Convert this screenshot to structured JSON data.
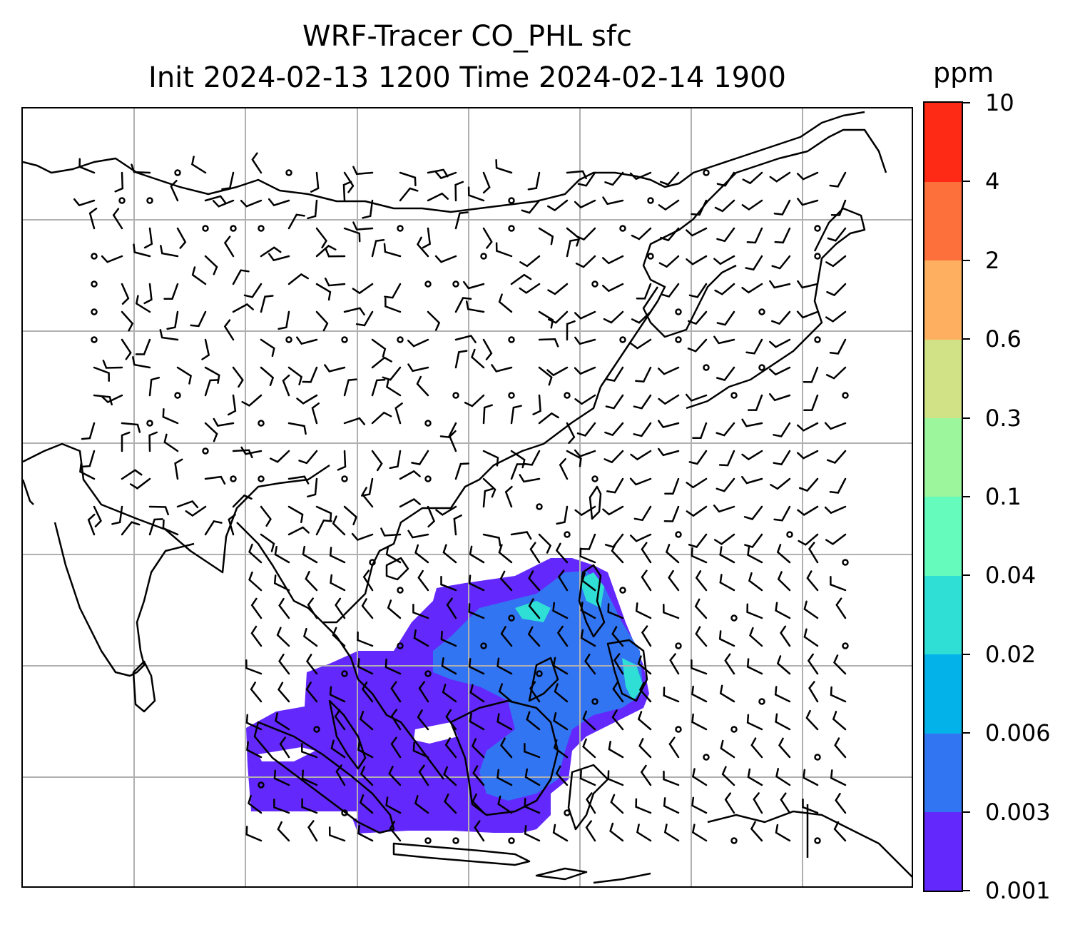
{
  "map": {
    "title_line1": "WRF-Tracer CO_PHL sfc",
    "title_line2": "Init 2024-02-13 1200 Time 2024-02-14 1900",
    "field": "CO_PHL",
    "level": "sfc",
    "overlay": "wind barbs",
    "grid": true
  },
  "colorbar": {
    "unit": "ppm",
    "levels": [
      "0.001",
      "0.003",
      "0.006",
      "0.02",
      "0.04",
      "0.1",
      "0.3",
      "0.6",
      "2",
      "4",
      "10"
    ],
    "colors": [
      "#6328fc",
      "#3275f3",
      "#04b2ea",
      "#2fdfd6",
      "#65fbbd",
      "#9bf69c",
      "#d0e186",
      "#feb060",
      "#fe703b",
      "#fe2a16"
    ]
  },
  "colors": {
    "plume_low": "#6328fc",
    "plume_mid": "#3275f3",
    "plume_high": "#2fdfd6",
    "coastline": "#000000",
    "gridline": "#b0b0b0"
  }
}
